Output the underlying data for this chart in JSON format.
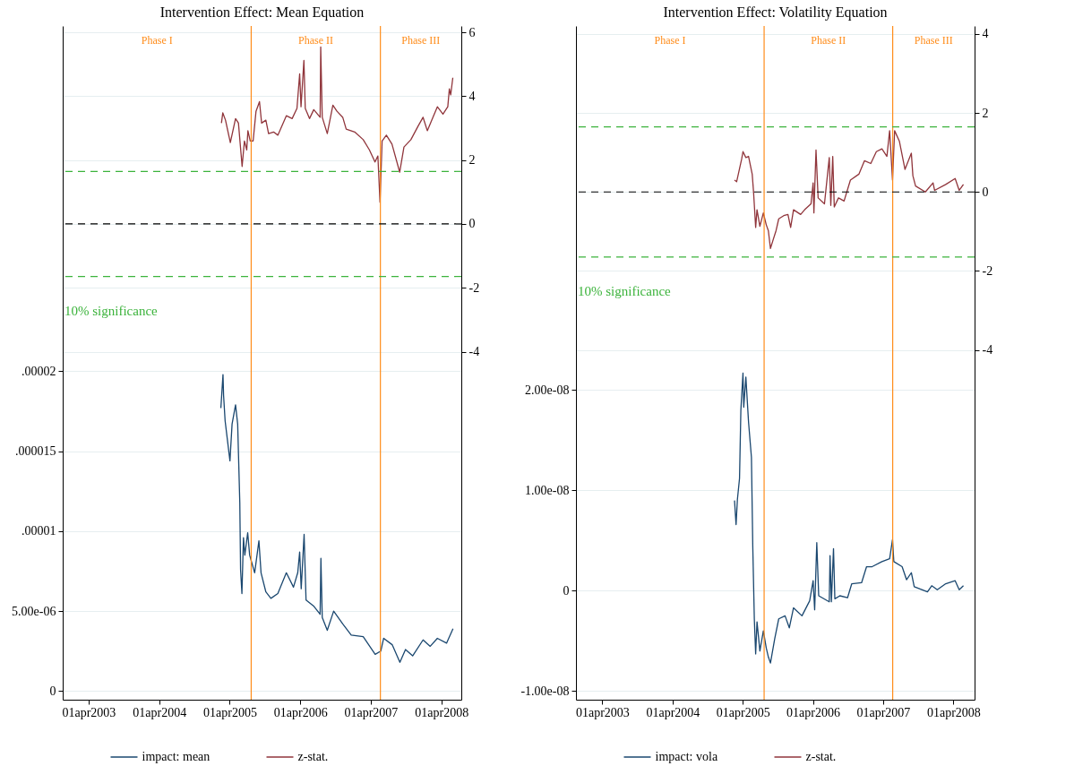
{
  "chart_data": [
    {
      "type": "line",
      "title": "Intervention Effect: Mean Equation",
      "xlim": [
        "2002-11-18",
        "2008-07-13"
      ],
      "xticks": [
        {
          "value": "2003-04-01",
          "label": "01apr2003"
        },
        {
          "value": "2004-04-01",
          "label": "01apr2004"
        },
        {
          "value": "2005-04-01",
          "label": "01apr2005"
        },
        {
          "value": "2006-04-01",
          "label": "01apr2006"
        },
        {
          "value": "2007-04-01",
          "label": "01apr2007"
        },
        {
          "value": "2008-04-01",
          "label": "01apr2008"
        }
      ],
      "ylim": [
        -5.4e-07,
        4.16e-05
      ],
      "yticks": [
        0,
        {
          "value": 5e-06,
          "label": "5.00e-06"
        },
        {
          "value": 1e-05,
          "label": ".00001"
        },
        {
          "value": 1.5e-05,
          "label": ".000015"
        },
        {
          "value": 2e-05,
          "label": ".00002"
        }
      ],
      "y2lim": [
        -14.9,
        6.2
      ],
      "y2ticks": [
        -4,
        -2,
        0,
        2,
        4,
        6
      ],
      "grid": "y",
      "legend": "bottom",
      "series": [
        {
          "name": "impact: mean",
          "color": "#1a476f",
          "x": [
            "2005-02-14",
            "2005-02-25",
            "2005-02-28",
            "2005-03-08",
            "2005-03-19",
            "2005-04-02",
            "2005-04-13",
            "2005-05-01",
            "2005-05-12",
            "2005-05-23",
            "2005-05-27",
            "2005-06-03",
            "2005-06-11",
            "2005-06-18",
            "2005-07-03",
            "2005-07-13",
            "2005-08-08",
            "2005-08-30",
            "2005-09-10",
            "2005-10-05",
            "2005-10-31",
            "2005-12-06",
            "2006-01-19",
            "2006-02-25",
            "2006-03-19",
            "2006-03-29",
            "2006-04-06",
            "2006-04-21",
            "2006-05-01",
            "2006-06-11",
            "2006-07-13",
            "2006-07-17",
            "2006-07-24",
            "2006-08-19",
            "2006-09-21",
            "2006-11-07",
            "2006-12-21",
            "2007-02-21",
            "2007-04-24",
            "2007-05-23",
            "2007-06-07",
            "2007-07-21",
            "2007-08-30",
            "2007-09-28",
            "2007-11-04",
            "2007-12-28",
            "2008-02-03",
            "2008-03-11",
            "2008-04-28",
            "2008-05-31"
          ],
          "values": [
            1.77e-05,
            1.98e-05,
            1.85e-05,
            1.69e-05,
            1.58e-05,
            1.44e-05,
            1.67e-05,
            1.79e-05,
            1.67e-05,
            1.18e-05,
            7.6e-06,
            6.1e-06,
            9.6e-06,
            8.5e-06,
            9.9e-06,
            8.5e-06,
            7.4e-06,
            9.4e-06,
            7.4e-06,
            6.2e-06,
            5.8e-06,
            6.1e-06,
            7.4e-06,
            6.5e-06,
            7.4e-06,
            8.7e-06,
            6.4e-06,
            9.8e-06,
            5.7e-06,
            5.3e-06,
            4.8e-06,
            8.3e-06,
            4.6e-06,
            3.8e-06,
            5e-06,
            4.2e-06,
            3.5e-06,
            3.4e-06,
            2.3e-06,
            2.5e-06,
            3.3e-06,
            2.9e-06,
            1.8e-06,
            2.6e-06,
            2.2e-06,
            3.2e-06,
            2.8e-06,
            3.3e-06,
            3e-06,
            3.9e-06
          ]
        },
        {
          "name": "z-stat.",
          "color": "#90353b",
          "axis": "y2",
          "x": [
            "2005-02-17",
            "2005-02-24",
            "2005-03-10",
            "2005-04-04",
            "2005-05-01",
            "2005-05-16",
            "2005-06-04",
            "2005-06-16",
            "2005-06-28",
            "2005-07-04",
            "2005-07-16",
            "2005-07-31",
            "2005-08-15",
            "2005-09-02",
            "2005-09-13",
            "2005-10-05",
            "2005-10-19",
            "2005-11-14",
            "2005-12-06",
            "2006-01-19",
            "2006-02-18",
            "2006-03-15",
            "2006-03-29",
            "2006-04-05",
            "2006-04-20",
            "2006-04-27",
            "2006-05-19",
            "2006-06-10",
            "2006-07-13",
            "2006-07-16",
            "2006-07-24",
            "2006-08-19",
            "2006-09-17",
            "2006-10-08",
            "2006-11-07",
            "2006-11-25",
            "2007-01-08",
            "2007-02-21",
            "2007-03-25",
            "2007-04-23",
            "2007-05-08",
            "2007-05-19",
            "2007-05-30",
            "2007-06-21",
            "2007-07-20",
            "2007-08-29",
            "2007-09-20",
            "2007-10-26",
            "2007-12-02",
            "2007-12-28",
            "2008-01-19",
            "2008-02-17",
            "2008-03-11",
            "2008-04-09",
            "2008-05-04",
            "2008-05-12",
            "2008-05-19",
            "2008-05-30"
          ],
          "values": [
            3.16,
            3.48,
            3.25,
            2.55,
            3.3,
            3.16,
            1.8,
            2.6,
            2.32,
            2.92,
            2.6,
            2.6,
            3.53,
            3.83,
            3.16,
            3.25,
            2.83,
            2.88,
            2.78,
            3.39,
            3.3,
            3.62,
            4.7,
            3.67,
            5.12,
            3.62,
            3.3,
            3.58,
            3.34,
            5.54,
            3.34,
            2.83,
            3.72,
            3.53,
            3.34,
            2.97,
            2.88,
            2.64,
            2.32,
            1.94,
            2.13,
            0.68,
            2.6,
            2.78,
            2.5,
            1.62,
            2.41,
            2.64,
            3.06,
            3.34,
            2.92,
            3.34,
            3.67,
            3.44,
            3.67,
            4.23,
            4.04,
            4.58
          ]
        }
      ],
      "ref_lines": [
        {
          "axis": "x",
          "value": "2005-07-21",
          "color": "#ff8c1a"
        },
        {
          "axis": "x",
          "value": "2007-05-21",
          "color": "#ff8c1a"
        },
        {
          "axis": "y2",
          "value": 0,
          "color": "#000000",
          "line_style": "dashed"
        },
        {
          "axis": "y2",
          "value": 1.645,
          "color": "#3cb33c",
          "line_style": "dashed"
        },
        {
          "axis": "y2",
          "value": -1.645,
          "color": "#3cb33c",
          "line_style": "dashed",
          "label": "10% significance"
        }
      ],
      "annotations": [
        "Phase I",
        "Phase II",
        "Phase III"
      ]
    },
    {
      "type": "line",
      "title": "Intervention Effect: Volatility Equation",
      "xlim": [
        "2002-11-15",
        "2008-07-20"
      ],
      "xticks": [
        {
          "value": "2003-04-01",
          "label": "01apr2003"
        },
        {
          "value": "2004-04-01",
          "label": "01apr2004"
        },
        {
          "value": "2005-04-01",
          "label": "01apr2005"
        },
        {
          "value": "2006-04-01",
          "label": "01apr2006"
        },
        {
          "value": "2007-04-01",
          "label": "01apr2007"
        },
        {
          "value": "2008-04-01",
          "label": "01apr2008"
        }
      ],
      "ylim": [
        -1.086e-08,
        5.63e-08
      ],
      "yticks": [
        {
          "value": -1e-08,
          "label": "-1.00e-08"
        },
        {
          "value": 0,
          "label": "0"
        },
        {
          "value": 1e-08,
          "label": "1.00e-08"
        },
        {
          "value": 2e-08,
          "label": "2.00e-08"
        }
      ],
      "y2lim": [
        -12.85,
        4.2
      ],
      "y2ticks": [
        -4,
        -2,
        0,
        2,
        4
      ],
      "grid": "y",
      "legend": "bottom",
      "series": [
        {
          "name": "impact: vola",
          "color": "#1a476f",
          "x": [
            "2005-02-17",
            "2005-02-25",
            "2005-03-04",
            "2005-03-15",
            "2005-03-22",
            "2005-04-02",
            "2005-04-06",
            "2005-04-17",
            "2005-05-01",
            "2005-05-16",
            "2005-05-23",
            "2005-05-31",
            "2005-06-07",
            "2005-06-14",
            "2005-06-29",
            "2005-07-17",
            "2005-08-01",
            "2005-08-12",
            "2005-08-23",
            "2005-09-14",
            "2005-10-05",
            "2005-11-07",
            "2005-11-29",
            "2005-12-21",
            "2006-02-03",
            "2006-03-15",
            "2006-04-02",
            "2006-04-10",
            "2006-04-21",
            "2006-05-01",
            "2006-06-25",
            "2006-06-29",
            "2006-07-06",
            "2006-07-17",
            "2006-07-24",
            "2006-08-19",
            "2006-09-28",
            "2006-10-20",
            "2006-12-10",
            "2007-01-05",
            "2007-02-03",
            "2007-03-26",
            "2007-05-05",
            "2007-05-20",
            "2007-05-27",
            "2007-07-09",
            "2007-08-01",
            "2007-08-26",
            "2007-09-10",
            "2007-11-18",
            "2007-12-10",
            "2008-01-08",
            "2008-02-21",
            "2008-04-10",
            "2008-05-01",
            "2008-05-23"
          ],
          "values": [
            9e-09,
            6.6e-09,
            9.1e-09,
            1.12e-08,
            1.8e-08,
            2.17e-08,
            1.83e-08,
            2.13e-08,
            1.68e-08,
            1.33e-08,
            4.4e-09,
            -2.8e-09,
            -6.3e-09,
            -3.1e-09,
            -6e-09,
            -4e-09,
            -5.7e-09,
            -6.6e-09,
            -7.2e-09,
            -4.8e-09,
            -2.8e-09,
            -2.5e-09,
            -3.7e-09,
            -1.7e-09,
            -2.5e-09,
            -1e-09,
            1e-09,
            -1.9e-09,
            4.8e-09,
            -5e-10,
            -1.1e-09,
            3.5e-09,
            -1.1e-09,
            4.2e-09,
            -8e-10,
            -5e-10,
            -7e-10,
            7e-10,
            8e-10,
            2.4e-09,
            2.4e-09,
            2.9e-09,
            3.2e-09,
            5.1e-09,
            2.9e-09,
            2.4e-09,
            1.1e-09,
            1.8e-09,
            4e-10,
            -1e-10,
            5e-10,
            1e-10,
            7e-10,
            1e-09,
            1e-10,
            5e-10
          ]
        },
        {
          "name": "z-stat.",
          "color": "#90353b",
          "axis": "y2",
          "x": [
            "2005-02-17",
            "2005-02-28",
            "2005-03-26",
            "2005-04-02",
            "2005-04-17",
            "2005-05-01",
            "2005-05-20",
            "2005-05-27",
            "2005-06-07",
            "2005-06-14",
            "2005-06-29",
            "2005-07-17",
            "2005-08-01",
            "2005-08-12",
            "2005-08-23",
            "2005-09-06",
            "2005-09-21",
            "2005-10-05",
            "2005-10-31",
            "2005-11-22",
            "2005-12-06",
            "2005-12-21",
            "2006-01-27",
            "2006-02-17",
            "2006-03-22",
            "2006-04-02",
            "2006-04-06",
            "2006-04-17",
            "2006-04-28",
            "2006-05-31",
            "2006-06-25",
            "2006-07-03",
            "2006-07-13",
            "2006-07-21",
            "2006-08-12",
            "2006-09-10",
            "2006-10-13",
            "2006-11-26",
            "2006-12-25",
            "2007-01-27",
            "2007-02-25",
            "2007-03-26",
            "2007-04-21",
            "2007-05-05",
            "2007-05-20",
            "2007-05-31",
            "2007-06-25",
            "2007-07-24",
            "2007-08-26",
            "2007-09-03",
            "2007-09-17",
            "2007-11-07",
            "2007-12-17",
            "2007-12-25",
            "2008-02-21",
            "2008-04-10",
            "2008-05-01",
            "2008-05-23"
          ],
          "values": [
            0.3,
            0.26,
            0.83,
            1.02,
            0.87,
            0.9,
            0.45,
            0.0,
            -0.9,
            -0.45,
            -0.87,
            -0.53,
            -0.83,
            -0.98,
            -1.43,
            -1.21,
            -0.98,
            -0.68,
            -0.6,
            -0.57,
            -0.9,
            -0.45,
            -0.57,
            -0.45,
            -0.3,
            0.23,
            -0.53,
            1.06,
            -0.15,
            -0.3,
            0.87,
            -0.34,
            0.9,
            -0.38,
            -0.15,
            -0.23,
            0.3,
            0.45,
            0.79,
            0.72,
            1.02,
            1.09,
            0.9,
            1.55,
            0.3,
            1.55,
            1.28,
            0.57,
            0.98,
            0.41,
            0.15,
            0.0,
            0.23,
            0.04,
            0.19,
            0.34,
            0.04,
            0.19
          ]
        }
      ],
      "ref_lines": [
        {
          "axis": "x",
          "value": "2005-07-21",
          "color": "#ff8c1a"
        },
        {
          "axis": "x",
          "value": "2007-05-21",
          "color": "#ff8c1a"
        },
        {
          "axis": "y2",
          "value": 0,
          "color": "#000000",
          "line_style": "dashed"
        },
        {
          "axis": "y2",
          "value": 1.645,
          "color": "#3cb33c",
          "line_style": "dashed"
        },
        {
          "axis": "y2",
          "value": -1.645,
          "color": "#3cb33c",
          "line_style": "dashed",
          "label": "10% significance"
        }
      ],
      "annotations": [
        "Phase I",
        "Phase II",
        "Phase III"
      ]
    }
  ]
}
